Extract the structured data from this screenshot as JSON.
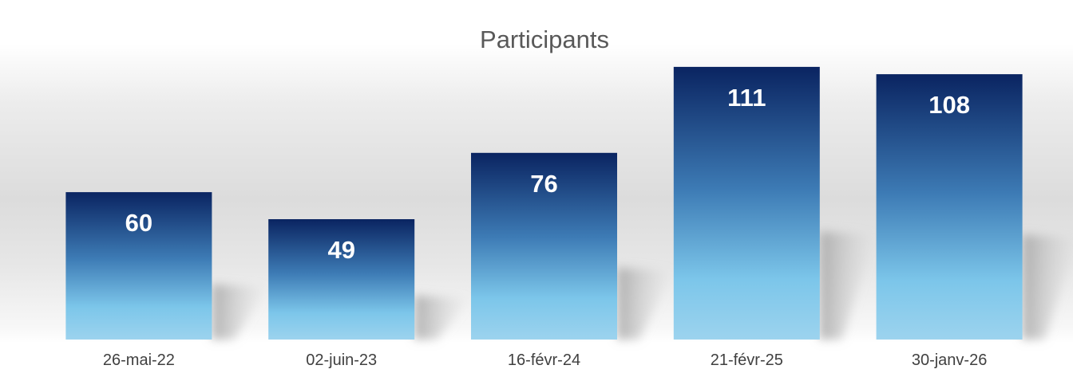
{
  "chart_data": {
    "type": "bar",
    "title": "Participants",
    "categories": [
      "26-mai-22",
      "02-juin-23",
      "16-févr-24",
      "21-févr-25",
      "30-janv-26"
    ],
    "series": [
      {
        "values": [
          60,
          49,
          76,
          111,
          108
        ]
      }
    ],
    "ylim": [
      0,
      122
    ],
    "grid": false,
    "legend": "none",
    "colors": {
      "bar_top": "#0a2461",
      "bar_mid": "#3d7bb5",
      "bar_bottom": "#7cc6ea",
      "title": "#595959",
      "tick_label": "#404040",
      "data_label": "#ffffff"
    }
  }
}
